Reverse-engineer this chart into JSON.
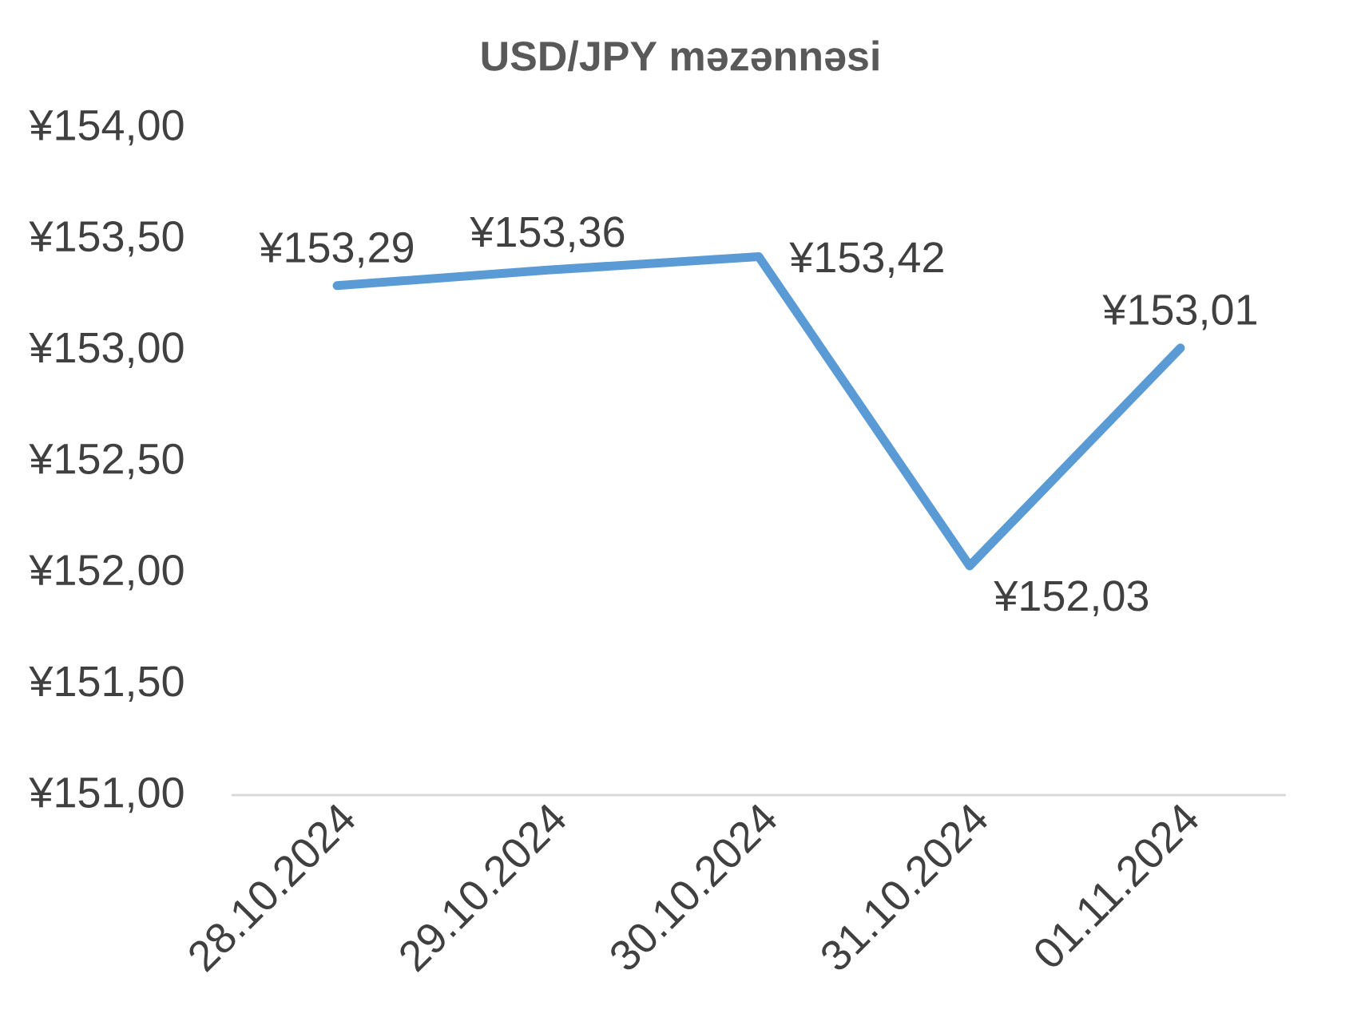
{
  "chart_data": {
    "type": "line",
    "title": "USD/JPY məzənnəsi",
    "categories": [
      "28.10.2024",
      "29.10.2024",
      "30.10.2024",
      "31.10.2024",
      "01.11.2024"
    ],
    "values": [
      153.29,
      153.36,
      153.42,
      152.03,
      153.01
    ],
    "value_labels": [
      "¥153,29",
      "¥153,36",
      "¥153,42",
      "¥152,03",
      "¥153,01"
    ],
    "color": "#5b9bd5",
    "marker": "none",
    "line_style": "solid",
    "ylim": [
      151,
      154
    ],
    "yticks": [
      {
        "value": 151,
        "label": "¥151,00"
      },
      {
        "value": 151.5,
        "label": "¥151,50"
      },
      {
        "value": 152,
        "label": "¥152,00"
      },
      {
        "value": 152.5,
        "label": "¥152,50"
      },
      {
        "value": 153,
        "label": "¥153,00"
      },
      {
        "value": 153.5,
        "label": "¥153,50"
      },
      {
        "value": 154,
        "label": "¥154,00"
      }
    ]
  }
}
